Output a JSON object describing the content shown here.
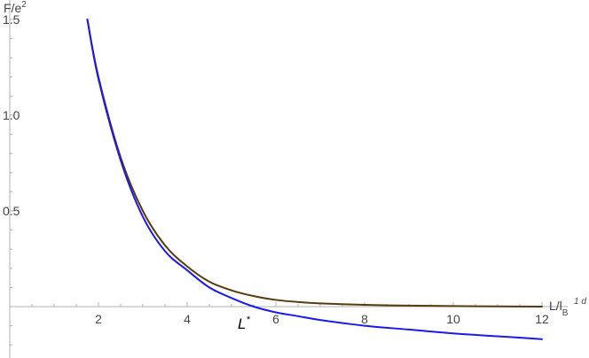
{
  "chart_data": {
    "type": "line",
    "xlim": [
      0,
      12
    ],
    "ylim": [
      -0.2,
      1.5
    ],
    "x_ticks": [
      2,
      4,
      6,
      8,
      10,
      12
    ],
    "y_ticks": [
      0.5,
      1.0,
      1.5
    ],
    "x_tick_labels": [
      "2",
      "4",
      "6",
      "8",
      "10",
      "12"
    ],
    "y_tick_labels": [
      "0.5",
      "1.0",
      "1.5"
    ],
    "xlabel": {
      "base": "L/l",
      "sub": "B",
      "sup": "1 d"
    },
    "ylabel": {
      "base": "F/e",
      "sup": "2"
    },
    "grid": false,
    "series": [
      {
        "color": "#5a3a10",
        "x": [
          1.75,
          2.0,
          2.5,
          3.0,
          3.5,
          4.0,
          4.5,
          5.0,
          5.5,
          6.0,
          6.5,
          7.0,
          8.0,
          9.0,
          10.0,
          11.0,
          12.0
        ],
        "y": [
          1.5,
          1.2,
          0.78,
          0.5,
          0.32,
          0.21,
          0.13,
          0.085,
          0.055,
          0.035,
          0.024,
          0.017,
          0.009,
          0.005,
          0.003,
          0.001,
          0.0
        ]
      },
      {
        "color": "#1a1aee",
        "x": [
          1.75,
          2.0,
          2.5,
          3.0,
          3.5,
          4.0,
          4.5,
          5.0,
          5.5,
          6.0,
          6.5,
          7.0,
          8.0,
          9.0,
          10.0,
          11.0,
          12.0
        ],
        "y": [
          1.5,
          1.19,
          0.765,
          0.47,
          0.29,
          0.19,
          0.1,
          0.045,
          0.0,
          -0.03,
          -0.05,
          -0.07,
          -0.1,
          -0.12,
          -0.14,
          -0.155,
          -0.17
        ]
      }
    ],
    "annotations": [
      {
        "text": "L",
        "sup": "*",
        "x": 5.3,
        "y": -0.06
      }
    ]
  }
}
